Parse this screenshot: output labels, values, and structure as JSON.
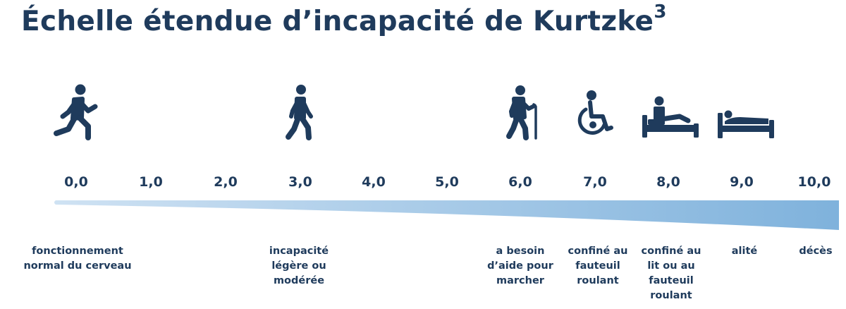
{
  "title": "Échelle étendue d’incapacité de Kurtzke",
  "title_superscript": "3",
  "colors": {
    "text": "#1f3b5c",
    "icon": "#1f3b5c",
    "bar_light": "#cfe2f3",
    "bar_dark": "#7fb2dc"
  },
  "scale": {
    "ticks": [
      "0,0",
      "1,0",
      "2,0",
      "3,0",
      "4,0",
      "5,0",
      "6,0",
      "7,0",
      "8,0",
      "9,0",
      "10,0"
    ]
  },
  "icons": [
    "running-person-icon",
    "walking-person-icon",
    "person-with-cane-icon",
    "wheelchair-icon",
    "person-sitting-in-bed-icon",
    "person-lying-in-bed-icon"
  ],
  "descriptions": {
    "d0": "fonctionnement normal du cerveau",
    "d3": "incapacité légère ou modérée",
    "d6": "a besoin d’aide pour marcher",
    "d7": "confiné au fauteuil roulant",
    "d8": "confiné au lit ou au fauteuil roulant",
    "d9": "alité",
    "d10": "décès"
  }
}
